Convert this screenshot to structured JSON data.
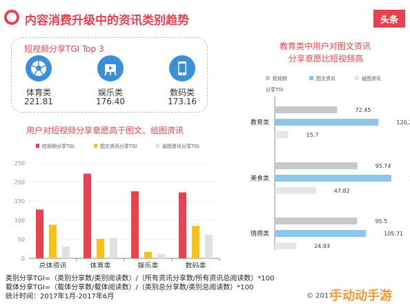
{
  "header": {
    "title": "内容消费升级中的资讯类别趋势",
    "brand": "头条"
  },
  "top_card": {
    "title": "短视频分享TGI Top 3",
    "items": [
      {
        "label": "体育类",
        "value": "221.81",
        "icon": "soccer-ball-icon"
      },
      {
        "label": "娱乐类",
        "value": "176.40",
        "icon": "video-camera-icon"
      },
      {
        "label": "数码类",
        "value": "173.16",
        "icon": "smartphone-icon"
      }
    ]
  },
  "chart_data": [
    {
      "type": "bar",
      "title": "用户对短视频分享意愿高于图文、组图资讯",
      "categories": [
        "总体资讯",
        "体育类",
        "娱乐类",
        "数码类"
      ],
      "series": [
        {
          "name": "短视频分享TGI",
          "color": "#e8414f",
          "values": [
            128,
            222,
            176,
            173
          ]
        },
        {
          "name": "图文资讯分享TGI",
          "color": "#f7c11a",
          "values": [
            88,
            51,
            17,
            85
          ]
        },
        {
          "name": "组图资讯分享TGI",
          "color": "#e0e0e0",
          "values": [
            31,
            54,
            12,
            62
          ]
        }
      ],
      "ylim": [
        0,
        250
      ],
      "yticks": [
        "0",
        "50",
        "100",
        "150",
        "200",
        "250"
      ],
      "legend": "top"
    },
    {
      "type": "bar",
      "orientation": "horizontal",
      "title": [
        "教育类中用户对图文资讯",
        "分享意愿比短视频高"
      ],
      "ylabel": "分享TGI",
      "categories": [
        "教育类",
        "美食类",
        "情感类"
      ],
      "series": [
        {
          "name": "短视频",
          "color": "#c8c8c8",
          "values": [
            72.45,
            95.74,
            95.5
          ]
        },
        {
          "name": "图文资讯",
          "color": "#8ec5ea",
          "values": [
            120.29,
            135.11,
            105.71
          ]
        },
        {
          "name": "组图资讯",
          "color": "#e6e6e6",
          "values": [
            15.7,
            47.82,
            24.93
          ]
        }
      ],
      "value_labels": [
        [
          "72.45",
          "120.29",
          "15.7"
        ],
        [
          "95.74",
          "135.11",
          "47.82"
        ],
        [
          "95.5",
          "105.71",
          "24.93"
        ]
      ],
      "legend": "top"
    }
  ],
  "notes": {
    "line1": "类别分享TGI=（类别分享数/类别阅读数）/（所有资讯分享数/所有资讯总阅读数）*100",
    "line2": "载体分享TGI=（载体分享数/载体阅读数）/（类别总分享数/类别总阅读数）*100",
    "line3": "统计时间：2017年1月-2017年6月"
  },
  "copyright": "© 2017",
  "watermark": "手动动手游"
}
